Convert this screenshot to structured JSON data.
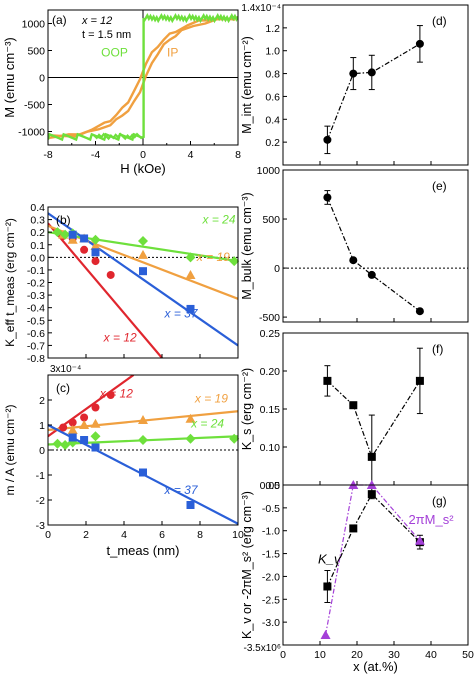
{
  "chart_data": [
    {
      "id": "a",
      "panel_label": "(a)",
      "type": "line",
      "annotations": [
        "x = 12",
        "t = 1.5 nm"
      ],
      "xlabel": "H (kOe)",
      "ylabel": "M (emu cm⁻³)",
      "xlim": [
        -8,
        8
      ],
      "ylim": [
        -1250,
        1250
      ],
      "xticks": [
        "-8",
        "-4",
        "0",
        "4",
        "8"
      ],
      "yticks": [
        "1000",
        "500",
        "0",
        "-500",
        "-1000"
      ],
      "series": [
        {
          "name": "OOP",
          "color": "#6ee03c",
          "x": [
            -8,
            -0.3,
            -0.05,
            0.05,
            0.3,
            8
          ],
          "y": [
            -1100,
            -1100,
            -1100,
            1100,
            1100,
            1100
          ]
        },
        {
          "name": "IP",
          "color": "#f0a040",
          "x": [
            -8,
            -7,
            -6,
            -5,
            -4,
            -3,
            -2.5,
            -2,
            -1.5,
            -1,
            -0.5,
            0,
            0.5,
            1,
            1.5,
            2,
            2.5,
            3,
            4,
            5,
            6,
            7,
            8
          ],
          "y": [
            -1100,
            -1090,
            -1070,
            -1030,
            -960,
            -860,
            -790,
            -700,
            -590,
            -450,
            -260,
            0,
            260,
            450,
            590,
            700,
            790,
            860,
            960,
            1030,
            1070,
            1090,
            1100
          ]
        }
      ]
    },
    {
      "id": "b",
      "panel_label": "(b)",
      "type": "scatter",
      "xlabel": "",
      "ylabel": "K_eff t_meas (erg cm⁻²)",
      "xlim": [
        0,
        10
      ],
      "ylim": [
        -0.8,
        0.4
      ],
      "yticks": [
        "0.4",
        "0.3",
        "0.2",
        "0.1",
        "0.0",
        "-0.1",
        "-0.2",
        "-0.3",
        "-0.4",
        "-0.5",
        "-0.6",
        "-0.7",
        "-0.8"
      ],
      "series": [
        {
          "name": "x = 12",
          "color": "#e0262e",
          "marker": "circle",
          "x": [
            0.8,
            1.3,
            1.9,
            2.5,
            3.3
          ],
          "y": [
            0.17,
            0.15,
            0.06,
            -0.03,
            -0.14
          ],
          "fit": [
            [
              0,
              0.27
            ],
            [
              6,
              -0.8
            ]
          ]
        },
        {
          "name": "x = 19",
          "color": "#f0a040",
          "marker": "triangle",
          "x": [
            0.8,
            1.3,
            1.9,
            2.5,
            5.0,
            7.5
          ],
          "y": [
            0.18,
            0.14,
            0.15,
            0.09,
            0.02,
            -0.14
          ],
          "fit": [
            [
              0,
              0.25
            ],
            [
              10,
              -0.33
            ]
          ]
        },
        {
          "name": "x = 24",
          "color": "#6ee03c",
          "marker": "diamond",
          "x": [
            0.5,
            0.9,
            1.3,
            2.5,
            5.0,
            7.5,
            9.8
          ],
          "y": [
            0.2,
            0.18,
            0.19,
            0.14,
            0.13,
            0.0,
            -0.03
          ],
          "fit": [
            [
              0,
              0.2
            ],
            [
              10,
              -0.03
            ]
          ]
        },
        {
          "name": "x = 37",
          "color": "#2a5fd8",
          "marker": "square",
          "x": [
            1.3,
            1.9,
            2.5,
            5.0,
            7.5
          ],
          "y": [
            0.18,
            0.15,
            0.04,
            -0.11,
            -0.41
          ],
          "fit": [
            [
              0,
              0.35
            ],
            [
              10,
              -0.7
            ]
          ]
        }
      ]
    },
    {
      "id": "c",
      "panel_label": "(c)",
      "type": "scatter",
      "xlabel": "t_meas (nm)",
      "ylabel": "m / A (emu cm⁻²)",
      "xlim": [
        0,
        10
      ],
      "ylim": [
        -3,
        3
      ],
      "y_scale_label": "3x10⁻⁴",
      "xticks": [
        "0",
        "2",
        "4",
        "6",
        "8",
        "10"
      ],
      "yticks": [
        "2",
        "1",
        "0",
        "-1",
        "-2",
        "-3"
      ],
      "series": [
        {
          "name": "x = 12",
          "color": "#e0262e",
          "marker": "circle",
          "x": [
            0.8,
            1.3,
            1.9,
            2.5,
            3.3
          ],
          "y": [
            0.9,
            1.1,
            1.3,
            1.7,
            2.2
          ],
          "fit": [
            [
              0,
              0.55
            ],
            [
              4.5,
              3
            ]
          ]
        },
        {
          "name": "x = 19",
          "color": "#f0a040",
          "marker": "triangle",
          "x": [
            1.3,
            1.9,
            2.5,
            5.0,
            7.5
          ],
          "y": [
            0.8,
            1.0,
            1.05,
            1.2,
            1.25
          ],
          "fit": [
            [
              0,
              0.8
            ],
            [
              10,
              1.55
            ]
          ]
        },
        {
          "name": "x = 24",
          "color": "#6ee03c",
          "marker": "diamond",
          "x": [
            0.5,
            0.9,
            1.3,
            2.5,
            5.0,
            7.5,
            9.8
          ],
          "y": [
            0.25,
            0.2,
            0.3,
            0.55,
            0.4,
            0.45,
            0.45
          ],
          "fit": [
            [
              0,
              0.22
            ],
            [
              10,
              0.55
            ]
          ]
        },
        {
          "name": "x = 37",
          "color": "#2a5fd8",
          "marker": "square",
          "x": [
            1.3,
            1.9,
            2.5,
            5.0,
            7.5
          ],
          "y": [
            0.5,
            0.4,
            0.1,
            -0.9,
            -2.2
          ],
          "fit": [
            [
              0,
              1.0
            ],
            [
              10,
              -2.95
            ]
          ]
        }
      ]
    },
    {
      "id": "d",
      "panel_label": "(d)",
      "type": "line",
      "ylabel": "M_int (emu cm⁻²)",
      "xlim": [
        0,
        50
      ],
      "ylim": [
        0,
        1.4
      ],
      "y_scale_label": "1.4x10⁻⁴",
      "yticks": [
        "1.2",
        "1.0",
        "0.8",
        "0.6",
        "0.4",
        "0.2"
      ],
      "series": [
        {
          "name": "",
          "color": "#000000",
          "marker": "circle",
          "x": [
            12,
            19,
            24,
            37
          ],
          "y": [
            0.22,
            0.8,
            0.81,
            1.06
          ],
          "err": [
            0.12,
            0.14,
            0.15,
            0.16
          ]
        }
      ]
    },
    {
      "id": "e",
      "panel_label": "(e)",
      "type": "line",
      "ylabel": "M_bulk (emu cm⁻³)",
      "xlim": [
        0,
        50
      ],
      "ylim": [
        -550,
        1000
      ],
      "yticks": [
        "1000",
        "500",
        "0",
        "-500"
      ],
      "series": [
        {
          "name": "",
          "color": "#000000",
          "marker": "circle",
          "x": [
            12,
            19,
            24,
            37
          ],
          "y": [
            720,
            80,
            -70,
            -440
          ],
          "err": [
            70,
            0,
            0,
            0
          ]
        }
      ]
    },
    {
      "id": "f",
      "panel_label": "(f)",
      "type": "line",
      "ylabel": "K_s (erg cm⁻²)",
      "xlim": [
        0,
        50
      ],
      "ylim": [
        0.05,
        0.25
      ],
      "yticks": [
        "0.25",
        "0.20",
        "0.15",
        "0.10",
        "0.05"
      ],
      "series": [
        {
          "name": "",
          "color": "#000000",
          "marker": "square",
          "x": [
            12,
            19,
            24,
            37
          ],
          "y": [
            0.187,
            0.155,
            0.087,
            0.187
          ],
          "err": [
            0.02,
            0,
            0.055,
            0.043
          ]
        }
      ]
    },
    {
      "id": "g",
      "panel_label": "(g)",
      "type": "line",
      "xlabel": "x (at.%)",
      "ylabel": "K_v or -2πM_s² (erg cm⁻³)",
      "xlim": [
        0,
        50
      ],
      "ylim": [
        -3.5,
        0
      ],
      "y_scale_label": "-3.5x10⁶",
      "xticks": [
        "0",
        "10",
        "20",
        "30",
        "40",
        "50"
      ],
      "yticks": [
        "0.0",
        "-0.5",
        "-1.0",
        "-1.5",
        "-2.0",
        "-2.5",
        "-3.0"
      ],
      "series": [
        {
          "name": "K_v",
          "color": "#000000",
          "marker": "square",
          "x": [
            12,
            19,
            24,
            37
          ],
          "y": [
            -2.22,
            -0.95,
            -0.2,
            -1.25
          ],
          "err": [
            0.35,
            0,
            0,
            0.15
          ]
        },
        {
          "name": "2πM_s²",
          "color": "#a440d8",
          "marker": "triangle",
          "x": [
            11.5,
            19,
            24,
            37
          ],
          "y": [
            -3.28,
            0,
            0,
            -1.22
          ]
        }
      ]
    }
  ]
}
